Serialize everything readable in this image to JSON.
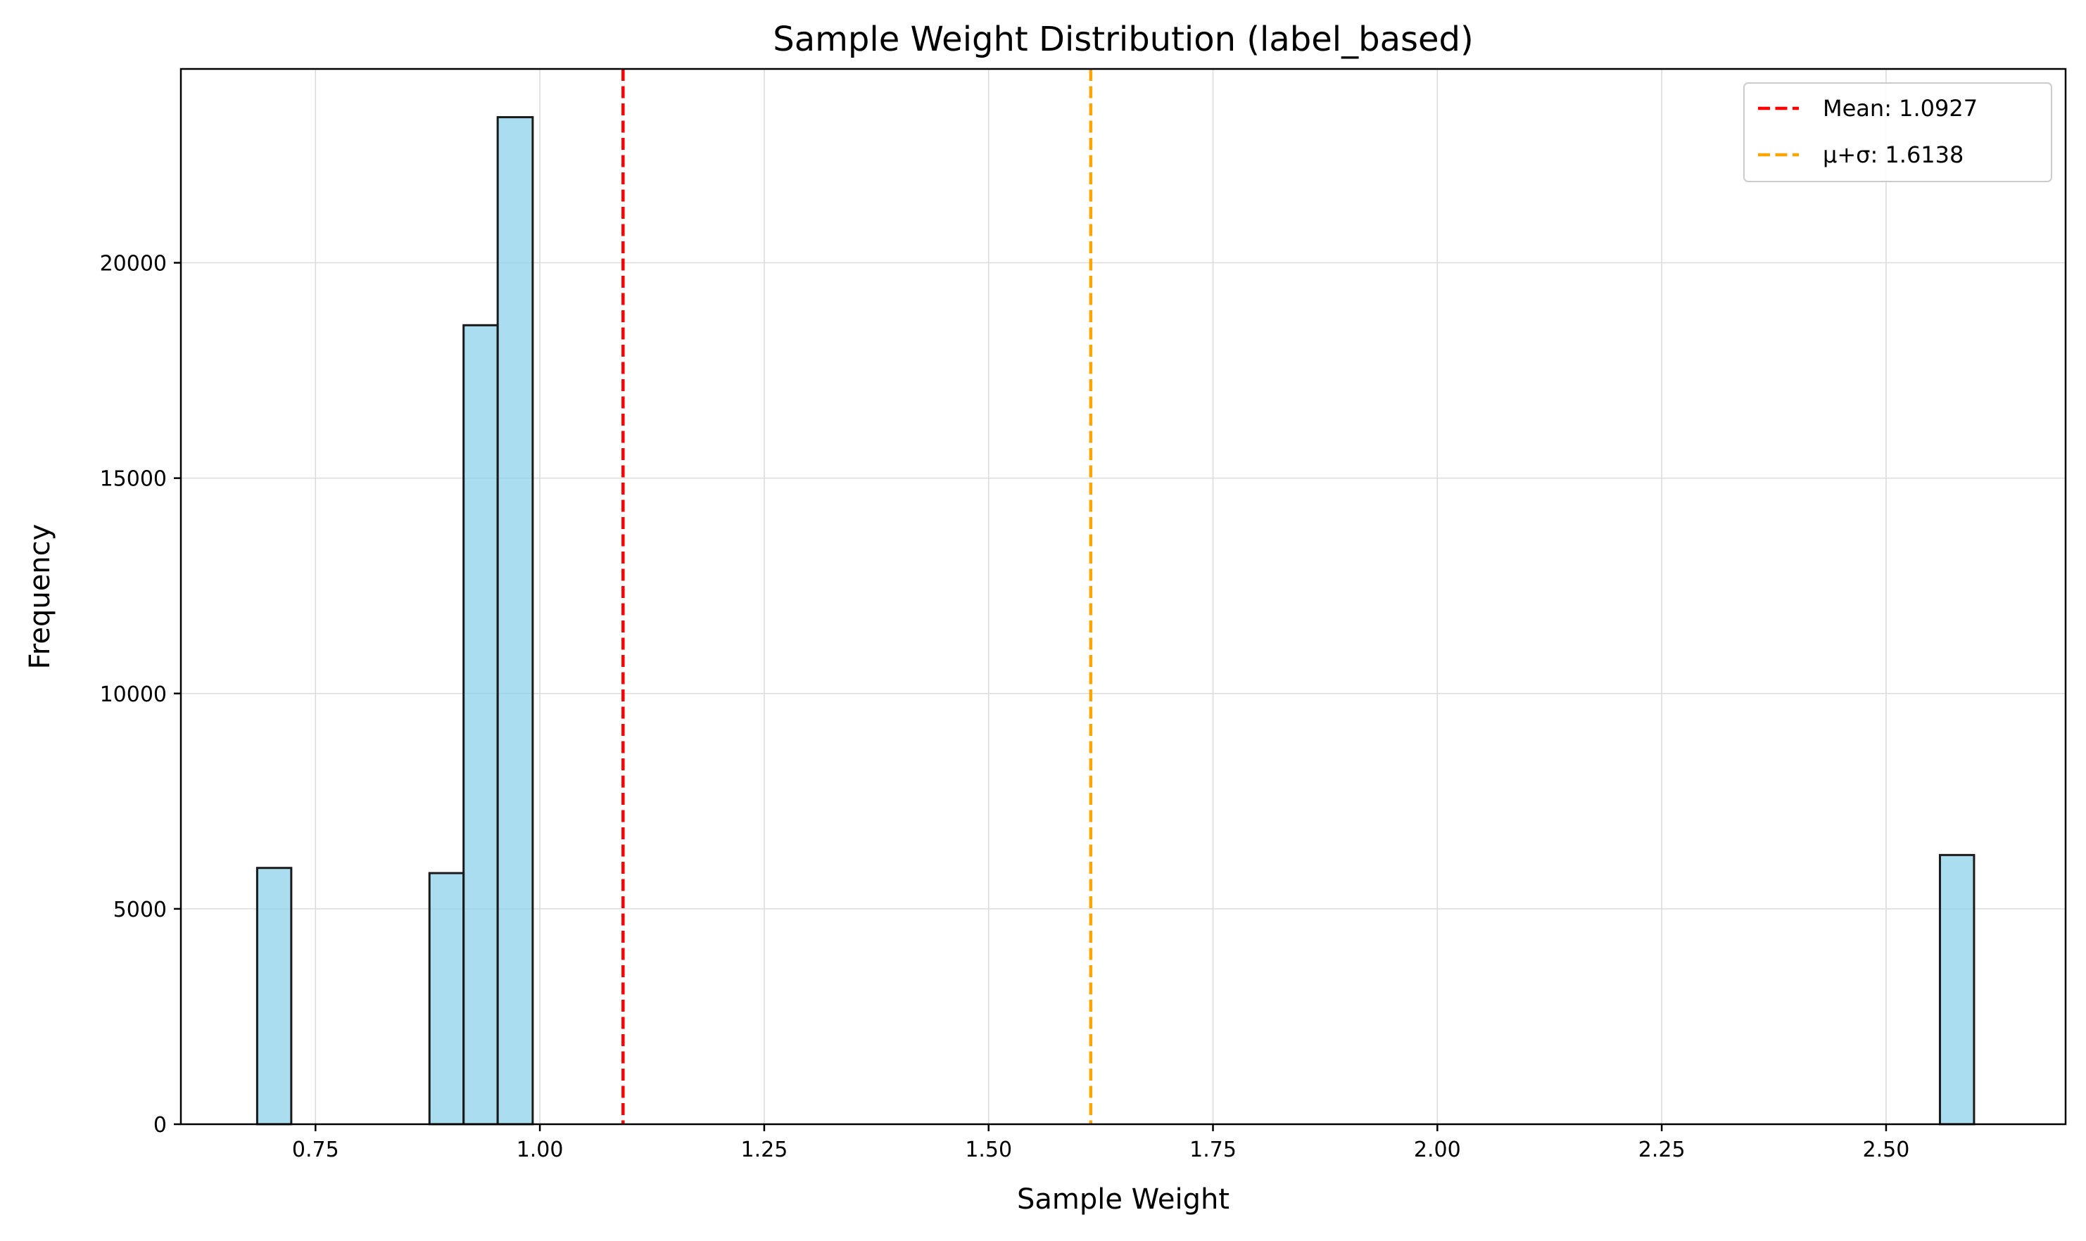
{
  "chart_data": {
    "type": "bar",
    "title": "Sample Weight Distribution (label_based)",
    "xlabel": "Sample Weight",
    "ylabel": "Frequency",
    "xlim": [
      0.6,
      2.7
    ],
    "ylim": [
      0,
      24500
    ],
    "grid": true,
    "legend_position": "top-right",
    "x_ticks": [
      0.75,
      1.0,
      1.25,
      1.5,
      1.75,
      2.0,
      2.25,
      2.5
    ],
    "x_tick_labels": [
      "0.75",
      "1.00",
      "1.25",
      "1.50",
      "1.75",
      "2.00",
      "2.25",
      "2.50"
    ],
    "y_ticks": [
      0,
      5000,
      10000,
      15000,
      20000
    ],
    "y_tick_labels": [
      "0",
      "5000",
      "10000",
      "15000",
      "20000"
    ],
    "bins": [
      {
        "x0": 0.685,
        "x1": 0.723,
        "count": 5950
      },
      {
        "x0": 0.877,
        "x1": 0.915,
        "count": 5830
      },
      {
        "x0": 0.915,
        "x1": 0.953,
        "count": 18550
      },
      {
        "x0": 0.953,
        "x1": 0.992,
        "count": 23380
      },
      {
        "x0": 2.56,
        "x1": 2.598,
        "count": 6250
      }
    ],
    "bar_color": "#87ceeb",
    "bar_edge_color": "#1a1a1a",
    "reference_lines": [
      {
        "name": "Mean: 1.0927",
        "x": 1.0927,
        "color": "#ff0000"
      },
      {
        "name": "μ+σ: 1.6138",
        "x": 1.6138,
        "color": "#ffa500"
      }
    ]
  }
}
